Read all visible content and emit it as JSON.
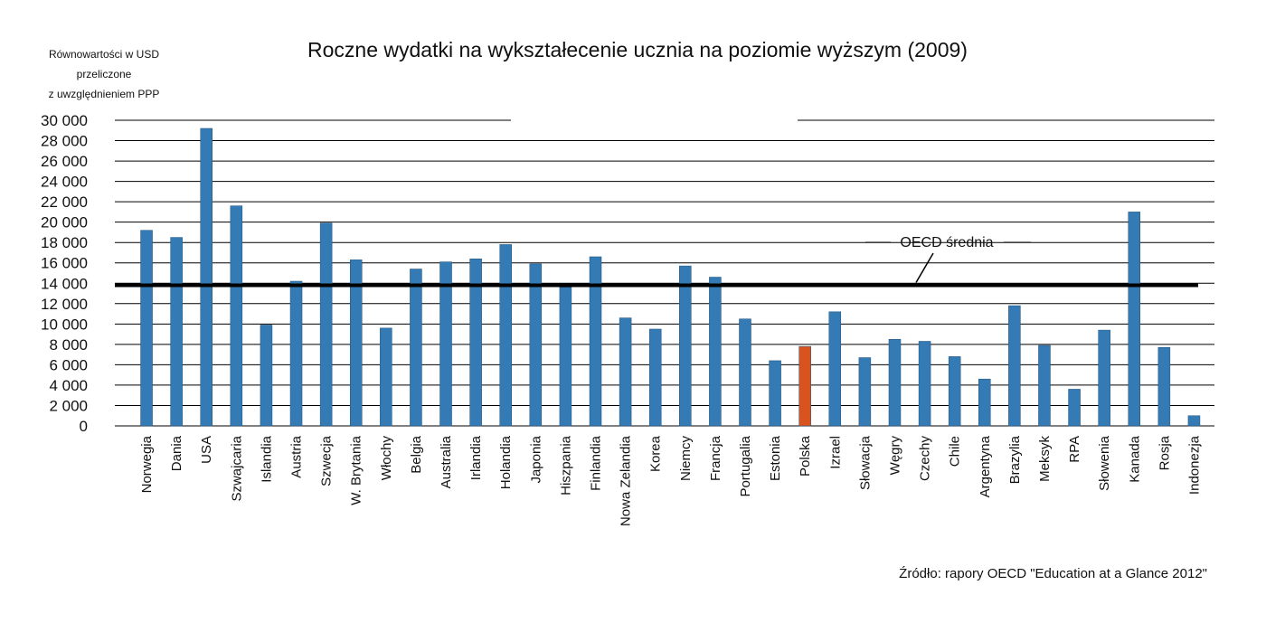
{
  "chart_data": {
    "type": "bar",
    "title": "Roczne wydatki na wykształecenie ucznia na poziomie wyższym (2009)",
    "y_label": [
      "Równowartości w USD",
      "przeliczone",
      "z uwzględnieniem PPP"
    ],
    "source": "Źródło: rapory OECD \"Education at a Glance 2012\"",
    "categories": [
      "Norwegia",
      "Dania",
      "USA",
      "Szwajcaria",
      "Islandia",
      "Austria",
      "Szwecja",
      "W. Brytania",
      "Włochy",
      "Belgia",
      "Australia",
      "Irlandia",
      "Holandia",
      "Japonia",
      "Hiszpania",
      "Finlandia",
      "Nowa Zelandia",
      "Korea",
      "Niemcy",
      "Francja",
      "Portugalia",
      "Estonia",
      "Polska",
      "Izrael",
      "Słowacja",
      "Węgry",
      "Czechy",
      "Chile",
      "Argentyna",
      "Brazylia",
      "Meksyk",
      "RPA",
      "Słowenia",
      "Kanada",
      "Rosja",
      "Indonezja"
    ],
    "values": [
      19200,
      18500,
      29200,
      21600,
      9900,
      14200,
      19900,
      16300,
      9600,
      15400,
      16100,
      16400,
      17800,
      15900,
      13600,
      16600,
      10600,
      9500,
      15700,
      14600,
      10500,
      6400,
      7800,
      11200,
      6700,
      8500,
      8300,
      6800,
      4600,
      11800,
      7900,
      3600,
      9400,
      21000,
      7700,
      1000
    ],
    "colors": [
      "#347bb5",
      "#347bb5",
      "#347bb5",
      "#347bb5",
      "#347bb5",
      "#347bb5",
      "#347bb5",
      "#347bb5",
      "#347bb5",
      "#347bb5",
      "#347bb5",
      "#347bb5",
      "#347bb5",
      "#347bb5",
      "#347bb5",
      "#347bb5",
      "#347bb5",
      "#347bb5",
      "#347bb5",
      "#347bb5",
      "#347bb5",
      "#347bb5",
      "#d9531e",
      "#347bb5",
      "#347bb5",
      "#347bb5",
      "#347bb5",
      "#347bb5",
      "#347bb5",
      "#347bb5",
      "#347bb5",
      "#347bb5",
      "#347bb5",
      "#347bb5",
      "#347bb5",
      "#347bb5"
    ],
    "reference_line": {
      "label": "OECD średnia",
      "value": 13800
    },
    "ylim": [
      0,
      30000
    ],
    "yticks": [
      0,
      {
        "value": 2000,
        "label": "2 000"
      },
      {
        "value": 4000,
        "label": "4 000"
      },
      {
        "value": 6000,
        "label": "6 000"
      },
      {
        "value": 8000,
        "label": "8 000"
      },
      {
        "value": 10000,
        "label": "10 000"
      },
      {
        "value": 12000,
        "label": "12 000"
      },
      {
        "value": 14000,
        "label": "14 000"
      },
      {
        "value": 16000,
        "label": "16 000"
      },
      {
        "value": 18000,
        "label": "18 000"
      },
      {
        "value": 20000,
        "label": "20 000"
      },
      {
        "value": 22000,
        "label": "22 000"
      },
      {
        "value": 24000,
        "label": "24 000"
      },
      {
        "value": 26000,
        "label": "26 000"
      },
      {
        "value": 28000,
        "label": "28 000"
      },
      {
        "value": 30000,
        "label": "30 000"
      }
    ],
    "grid": true
  }
}
